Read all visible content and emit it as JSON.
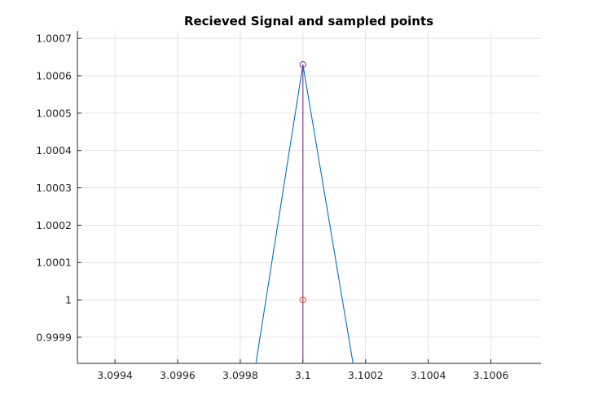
{
  "chart_data": {
    "type": "line",
    "title": "Recieved Signal and sampled points",
    "xlabel": "",
    "ylabel": "",
    "xlim": [
      3.09928,
      3.10076
    ],
    "ylim": [
      0.99983,
      1.00072
    ],
    "grid": true,
    "x_ticks": [
      {
        "value": 3.0994,
        "label": "3.0994"
      },
      {
        "value": 3.0996,
        "label": "3.0996"
      },
      {
        "value": 3.0998,
        "label": "3.0998"
      },
      {
        "value": 3.1,
        "label": "3.1"
      },
      {
        "value": 3.1002,
        "label": "3.1002"
      },
      {
        "value": 3.1004,
        "label": "3.1004"
      },
      {
        "value": 3.1006,
        "label": "3.1006"
      }
    ],
    "y_ticks": [
      {
        "value": 0.9999,
        "label": "0.9999"
      },
      {
        "value": 1.0,
        "label": "1"
      },
      {
        "value": 1.0001,
        "label": "1.0001"
      },
      {
        "value": 1.0002,
        "label": "1.0002"
      },
      {
        "value": 1.0003,
        "label": "1.0003"
      },
      {
        "value": 1.0004,
        "label": "1.0004"
      },
      {
        "value": 1.0005,
        "label": "1.0005"
      },
      {
        "value": 1.0006,
        "label": "1.0006"
      },
      {
        "value": 1.0007,
        "label": "1.0007"
      }
    ],
    "series": [
      {
        "style": "line",
        "color": "#0072BD",
        "points": [
          {
            "x": 3.09985,
            "y": 0.99983
          },
          {
            "x": 3.1,
            "y": 1.00063
          },
          {
            "x": 3.10016,
            "y": 0.99983
          }
        ]
      },
      {
        "style": "line",
        "color": "#7E2F8E",
        "points": [
          {
            "x": 3.1,
            "y": 0.99983
          },
          {
            "x": 3.1,
            "y": 1.00063
          }
        ]
      },
      {
        "style": "marker-circle",
        "color": "#7E2F8E",
        "points": [
          {
            "x": 3.1,
            "y": 1.00063
          }
        ]
      },
      {
        "style": "marker-circle",
        "color": "#D95319",
        "points": [
          {
            "x": 3.1,
            "y": 1.0
          }
        ]
      }
    ]
  }
}
